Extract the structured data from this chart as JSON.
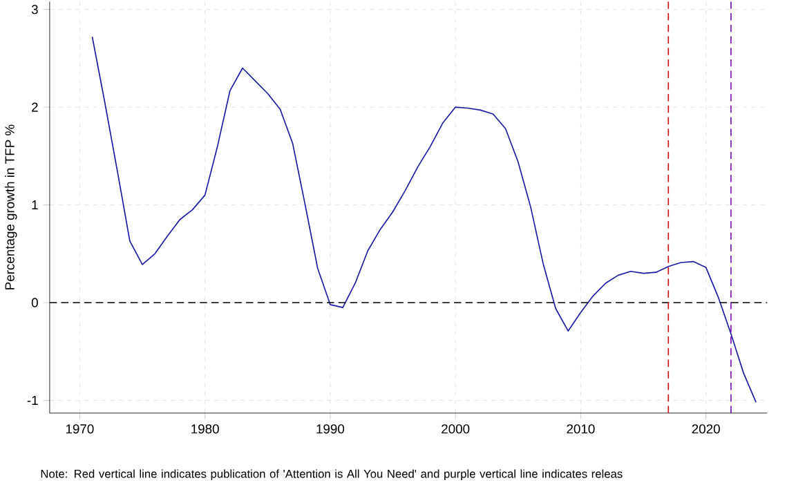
{
  "chart_data": {
    "type": "line",
    "ylabel": "Percentage growth in TFP %",
    "x": [
      1971,
      1972,
      1973,
      1974,
      1975,
      1976,
      1977,
      1978,
      1979,
      1980,
      1981,
      1982,
      1983,
      1984,
      1985,
      1986,
      1987,
      1988,
      1989,
      1990,
      1991,
      1992,
      1993,
      1994,
      1995,
      1996,
      1997,
      1998,
      1999,
      2000,
      2001,
      2002,
      2003,
      2004,
      2005,
      2006,
      2007,
      2008,
      2009,
      2010,
      2011,
      2012,
      2013,
      2014,
      2015,
      2016,
      2017,
      2018,
      2019,
      2020,
      2021,
      2022,
      2023,
      2024
    ],
    "series": [
      {
        "color": "#1a1aa6",
        "values": [
          2.72,
          2.05,
          1.35,
          0.63,
          0.39,
          0.5,
          0.68,
          0.85,
          0.95,
          1.1,
          1.6,
          2.17,
          2.4,
          2.27,
          2.14,
          1.98,
          1.63,
          1.0,
          0.35,
          -0.02,
          -0.05,
          0.2,
          0.53,
          0.75,
          0.93,
          1.15,
          1.39,
          1.6,
          1.84,
          2.0,
          1.99,
          1.97,
          1.93,
          1.78,
          1.44,
          0.98,
          0.4,
          -0.06,
          -0.29,
          -0.1,
          0.07,
          0.2,
          0.28,
          0.32,
          0.3,
          0.31,
          0.37,
          0.41,
          0.42,
          0.36,
          0.05,
          -0.32,
          -0.72,
          -1.02
        ]
      }
    ],
    "xlim": [
      1967.6,
      2024.9
    ],
    "ylim": [
      -1.13,
      3.08
    ],
    "xticks": [
      1970,
      1980,
      1990,
      2000,
      2010,
      2020
    ],
    "yticks": [
      -1,
      0,
      1,
      2,
      3
    ],
    "grid": true,
    "line_style": "solid",
    "marker": "none",
    "ref_lines": [
      {
        "axis": "y",
        "value": 0,
        "color": "#000000",
        "line_style": "dashed"
      },
      {
        "axis": "x",
        "value": 2017,
        "color": "#cc1111",
        "line_style": "dashed"
      },
      {
        "axis": "x",
        "value": 2022,
        "color": "#7a0fb0",
        "line_style": "dashed"
      }
    ],
    "annotations": [
      "Note: Red vertical line indicates publication of 'Attention is All You Need' and purple vertical line indicates releas"
    ]
  }
}
